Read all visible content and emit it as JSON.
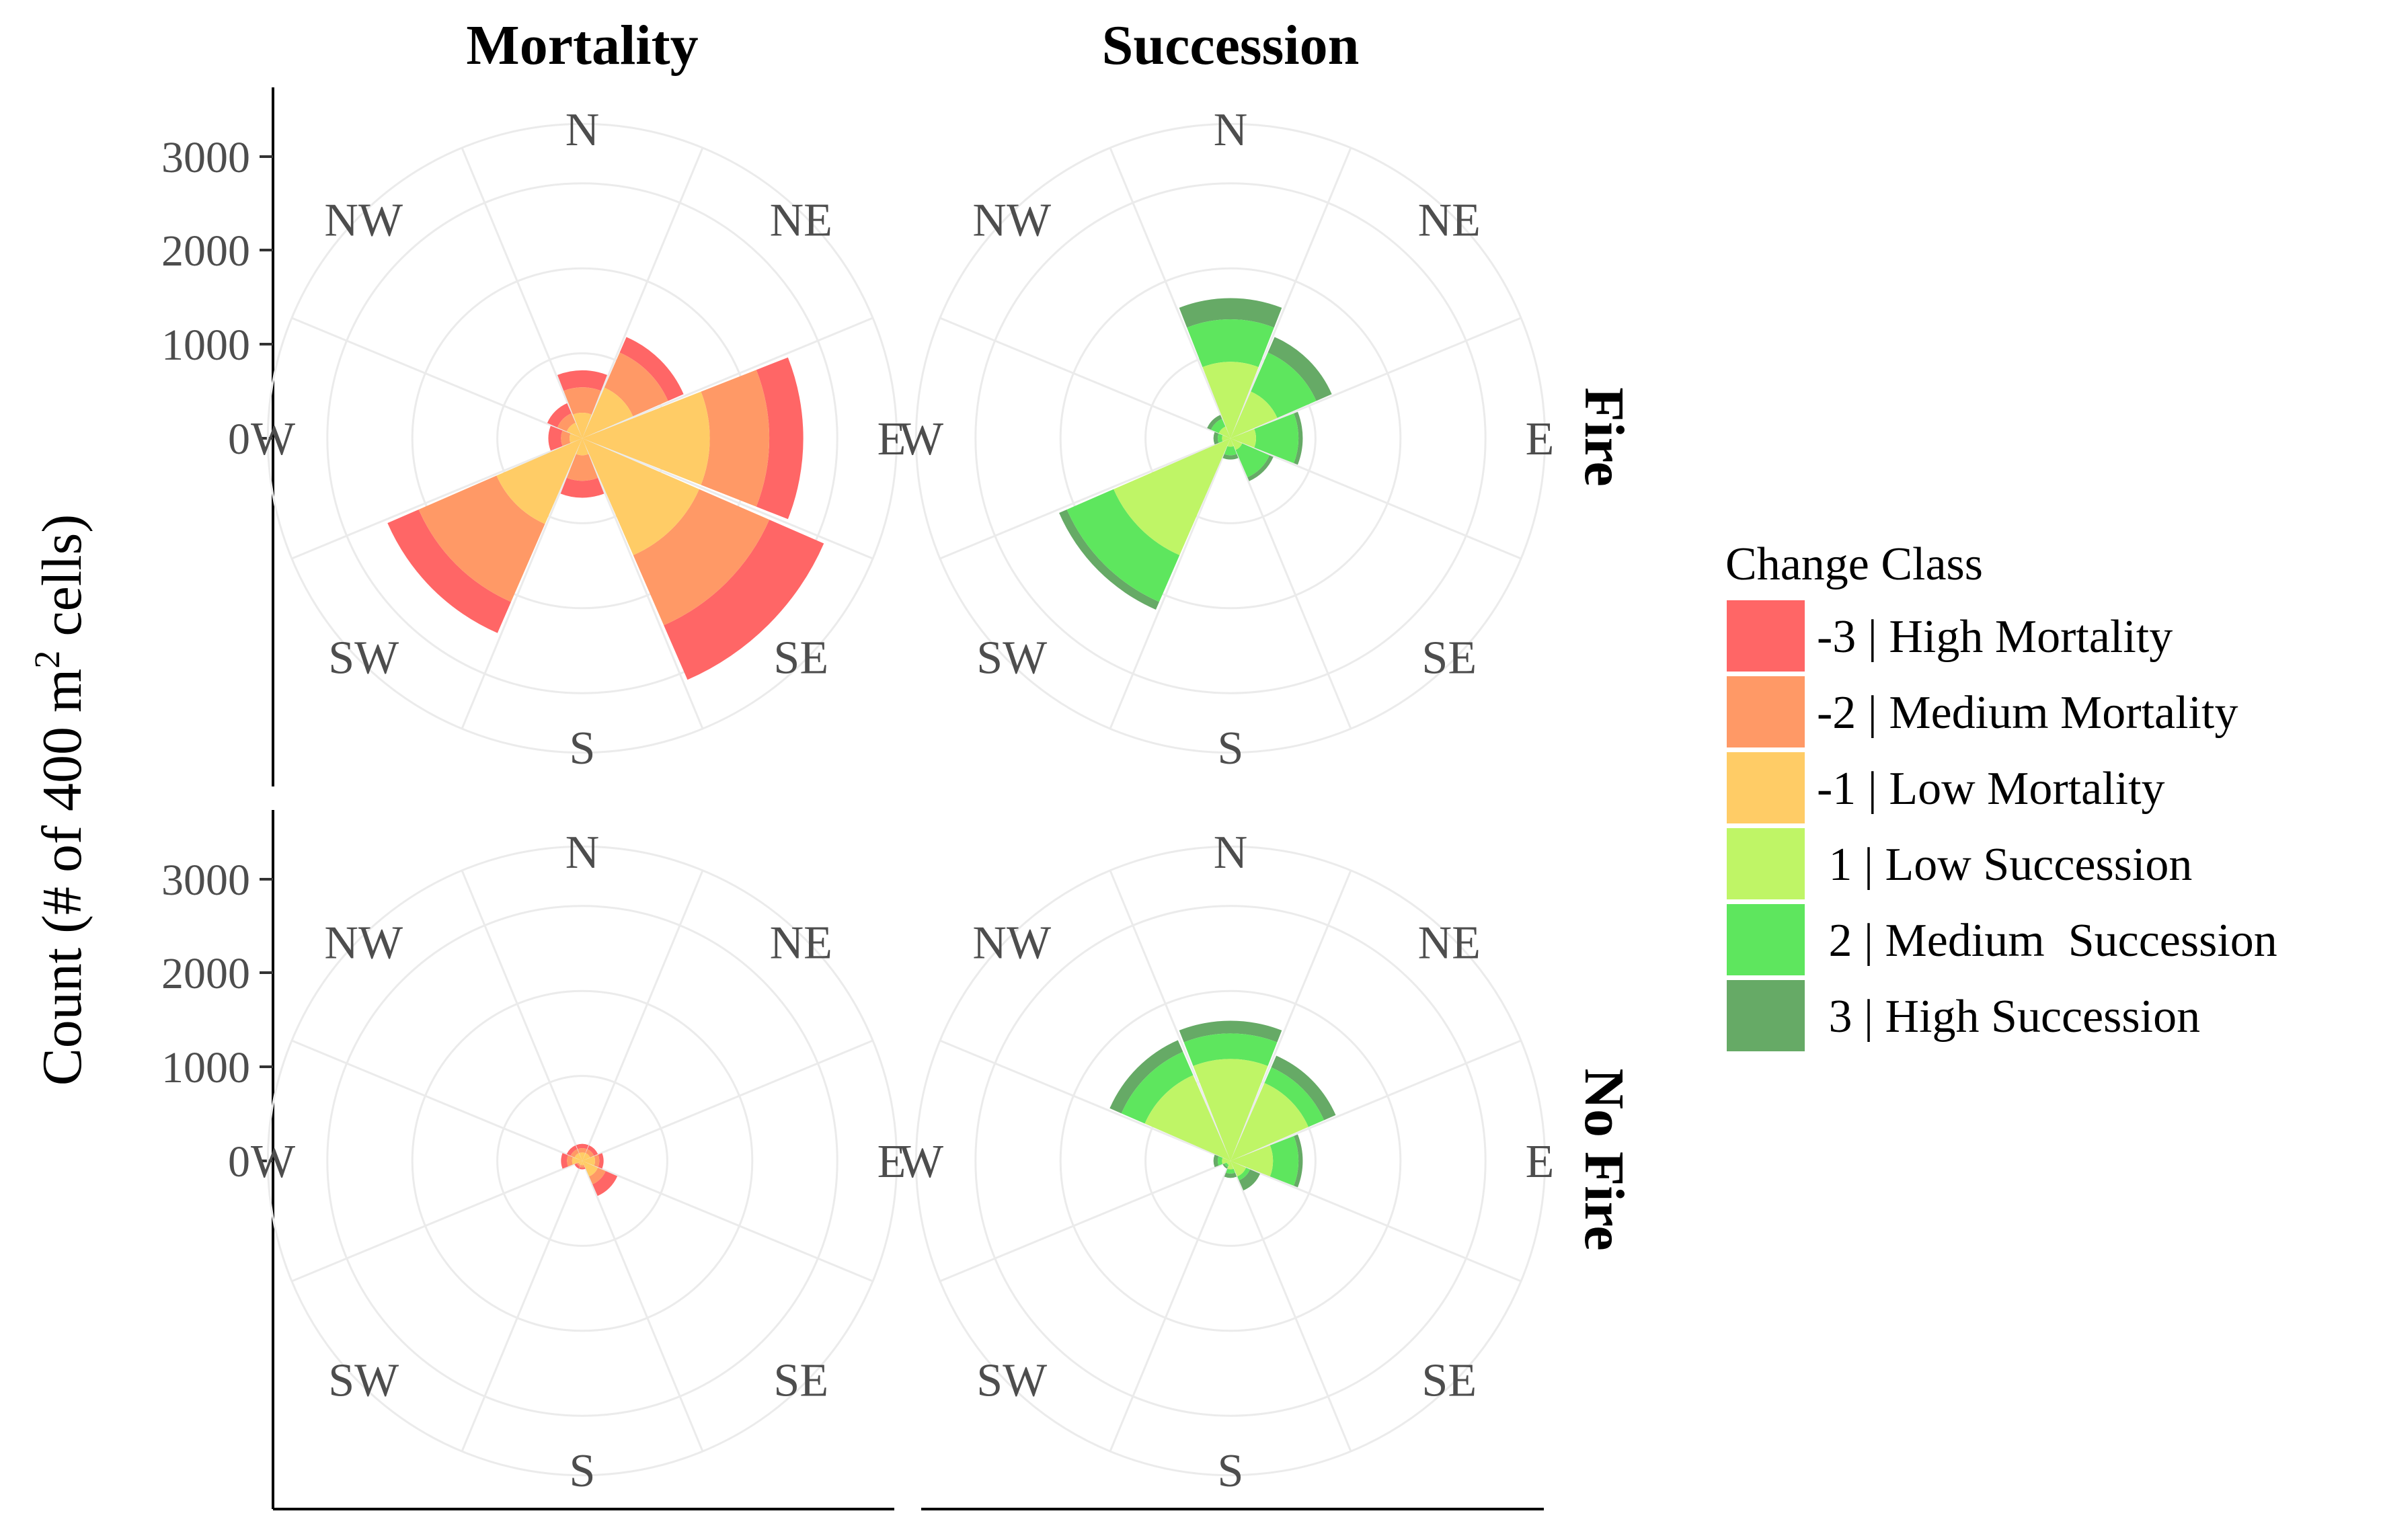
{
  "chart_data": {
    "type": "polar-stacked-bar",
    "ylabel_main": "Count (# of 400 m",
    "ylabel_sup": "2",
    "ylabel_end": " cells)",
    "ylim": [
      0,
      3700
    ],
    "yticks": [
      "0",
      "1000",
      "2000",
      "3000"
    ],
    "directions": [
      "N",
      "NE",
      "E",
      "SE",
      "S",
      "SW",
      "W",
      "NW"
    ],
    "columns": [
      "Mortality",
      "Succession"
    ],
    "rows": [
      "Fire",
      "No Fire"
    ],
    "legend": {
      "title": "Change Class",
      "items": [
        {
          "label": "-3 | High Mortality",
          "color": "#ff6666"
        },
        {
          "label": "-2 | Medium Mortality",
          "color": "#ff9966"
        },
        {
          "label": "-1 | Low Mortality",
          "color": "#ffcc66"
        },
        {
          "label": " 1 | Low Succession",
          "color": "#bff566"
        },
        {
          "label": " 2 | Medium  Succession",
          "color": "#5ee65e"
        },
        {
          "label": " 3 | High Succession",
          "color": "#66aa66"
        }
      ]
    },
    "panels": [
      {
        "row": "Fire",
        "column": "Mortality",
        "series": [
          {
            "name": "-1 | Low Mortality",
            "values": [
              300,
              650,
              1500,
              1500,
              200,
              1100,
              150,
              200
            ]
          },
          {
            "name": "-2 | Medium Mortality",
            "values": [
              600,
              1100,
              2200,
              2400,
              500,
              2100,
              250,
              320
            ]
          },
          {
            "name": "-3 | High Mortality",
            "values": [
              800,
              1300,
              2600,
              3100,
              700,
              2500,
              400,
              450
            ]
          }
        ]
      },
      {
        "row": "Fire",
        "column": "Succession",
        "series": [
          {
            "name": "1 | Low Succession",
            "values": [
              900,
              600,
              300,
              150,
              100,
              1500,
              100,
              150
            ]
          },
          {
            "name": "2 | Medium  Succession",
            "values": [
              1400,
              1100,
              800,
              500,
              200,
              2100,
              150,
              250
            ]
          },
          {
            "name": "3 | High Succession",
            "values": [
              1650,
              1300,
              850,
              550,
              250,
              2200,
              200,
              300
            ]
          }
        ]
      },
      {
        "row": "No Fire",
        "column": "Mortality",
        "series": [
          {
            "name": "-1 | Low Mortality",
            "values": [
              100,
              100,
              150,
              200,
              50,
              50,
              120,
              100
            ]
          },
          {
            "name": "-2 | Medium Mortality",
            "values": [
              150,
              150,
              200,
              300,
              80,
              70,
              180,
              150
            ]
          },
          {
            "name": "-3 | High Mortality",
            "values": [
              200,
              200,
              250,
              450,
              100,
              100,
              250,
              200
            ]
          }
        ]
      },
      {
        "row": "No Fire",
        "column": "Succession",
        "series": [
          {
            "name": "1 | Low Succession",
            "values": [
              1200,
              1000,
              500,
              200,
              100,
              50,
              100,
              1100
            ]
          },
          {
            "name": "2 | Medium  Succession",
            "values": [
              1500,
              1200,
              800,
              250,
              150,
              80,
              150,
              1400
            ]
          },
          {
            "name": "3 | High Succession",
            "values": [
              1650,
              1350,
              850,
              380,
              200,
              100,
              200,
              1550
            ]
          }
        ]
      }
    ]
  }
}
